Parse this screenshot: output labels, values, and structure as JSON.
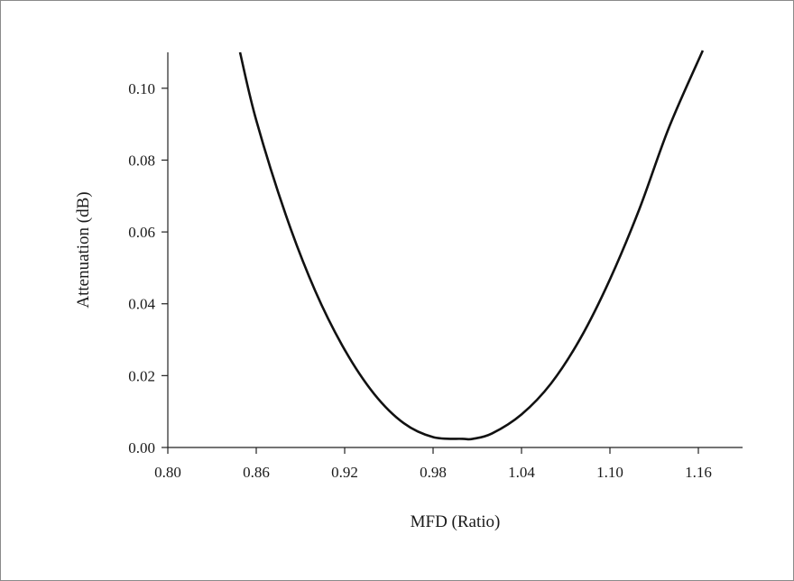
{
  "chart_data": {
    "type": "line",
    "title": "",
    "xlabel": "MFD (Ratio)",
    "ylabel": "Attenuation (dB)",
    "xlim": [
      0.8,
      1.19
    ],
    "ylim": [
      0.0,
      0.11
    ],
    "xticks": [
      0.8,
      0.86,
      0.92,
      0.98,
      1.04,
      1.1,
      1.16
    ],
    "xtick_labels": [
      "0.80",
      "0.86",
      "0.92",
      "0.98",
      "1.04",
      "1.10",
      "1.16"
    ],
    "yticks": [
      0.0,
      0.02,
      0.04,
      0.06,
      0.08,
      0.1
    ],
    "ytick_labels": [
      "0.00",
      "0.02",
      "0.04",
      "0.06",
      "0.08",
      "0.10"
    ],
    "grid": false,
    "legend": "none",
    "series": [
      {
        "color": "#111111",
        "x": [
          0.849,
          0.86,
          0.88,
          0.9,
          0.92,
          0.94,
          0.96,
          0.98,
          1.0,
          1.007,
          1.02,
          1.04,
          1.06,
          1.08,
          1.1,
          1.12,
          1.14,
          1.163
        ],
        "y": [
          0.11,
          0.0911,
          0.0648,
          0.0436,
          0.0272,
          0.0149,
          0.0068,
          0.0029,
          0.0024,
          0.0024,
          0.0039,
          0.0092,
          0.0178,
          0.0304,
          0.0468,
          0.0664,
          0.089,
          0.1105
        ]
      }
    ]
  }
}
